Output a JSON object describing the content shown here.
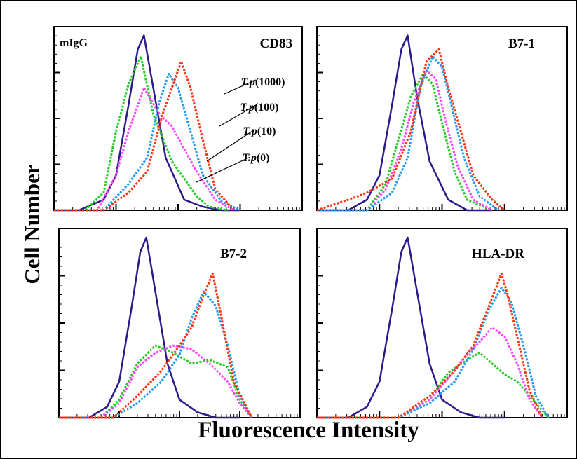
{
  "figure": {
    "y_axis_label": "Cell Number",
    "x_axis_label": "Fluorescence Intensity"
  },
  "colors": {
    "mIgG": "#2a1a8c",
    "T.p(0)": "#22cc22",
    "T.p(10)": "#ff44ff",
    "T.p(100)": "#2299ee",
    "T.p(1000)": "#ff3311"
  },
  "chart_data": [
    {
      "type": "line",
      "title": "CD83",
      "corner_label": "mIgG",
      "x_scale": "log",
      "xlim": [
        0,
        4
      ],
      "annotations": [
        "T.p(1000)",
        "T.p(100)",
        "T.p(10)",
        "T.p(0)"
      ],
      "series": [
        {
          "name": "mIgG",
          "style": "solid",
          "x": [
            0.0,
            0.4,
            0.8,
            1.0,
            1.2,
            1.35,
            1.45,
            1.6,
            1.8,
            2.1,
            2.4,
            2.7,
            3.0
          ],
          "y": [
            0,
            0,
            6,
            20,
            60,
            92,
            100,
            70,
            30,
            6,
            2,
            0,
            0
          ]
        },
        {
          "name": "T.p(0)",
          "style": "dotted",
          "x": [
            0.0,
            0.5,
            0.8,
            1.0,
            1.2,
            1.4,
            1.6,
            1.9,
            2.1,
            2.3,
            2.5,
            2.8
          ],
          "y": [
            0,
            0,
            10,
            45,
            72,
            88,
            55,
            28,
            18,
            8,
            2,
            0
          ]
        },
        {
          "name": "T.p(10)",
          "style": "dotted",
          "x": [
            0.0,
            0.7,
            1.0,
            1.2,
            1.45,
            1.7,
            1.9,
            2.1,
            2.3,
            2.6,
            2.9
          ],
          "y": [
            0,
            0,
            20,
            45,
            70,
            55,
            48,
            35,
            22,
            6,
            0
          ]
        },
        {
          "name": "T.p(100)",
          "style": "dotted",
          "x": [
            0.0,
            0.8,
            1.2,
            1.5,
            1.7,
            1.85,
            2.0,
            2.2,
            2.4,
            2.7,
            3.0
          ],
          "y": [
            0,
            0,
            15,
            30,
            62,
            78,
            70,
            45,
            20,
            5,
            0
          ]
        },
        {
          "name": "T.p(1000)",
          "style": "dotted",
          "x": [
            0.0,
            0.8,
            1.2,
            1.5,
            1.75,
            1.9,
            2.05,
            2.2,
            2.4,
            2.6,
            2.9
          ],
          "y": [
            0,
            0,
            10,
            22,
            55,
            70,
            85,
            70,
            40,
            12,
            0
          ]
        }
      ]
    },
    {
      "type": "line",
      "title": "B7-1",
      "x_scale": "log",
      "xlim": [
        0,
        4
      ],
      "series": [
        {
          "name": "mIgG",
          "style": "solid",
          "x": [
            0.0,
            0.5,
            0.8,
            1.0,
            1.2,
            1.35,
            1.45,
            1.6,
            1.8,
            2.1,
            2.4,
            2.8
          ],
          "y": [
            0,
            0,
            6,
            20,
            60,
            92,
            100,
            65,
            28,
            6,
            0,
            0
          ]
        },
        {
          "name": "T.p(0)",
          "style": "dotted",
          "x": [
            0.0,
            0.8,
            1.1,
            1.3,
            1.5,
            1.7,
            1.85,
            2.0,
            2.2,
            2.4,
            2.8
          ],
          "y": [
            0,
            0,
            15,
            40,
            65,
            78,
            72,
            50,
            22,
            6,
            0
          ]
        },
        {
          "name": "T.p(10)",
          "style": "dotted",
          "x": [
            0.0,
            0.8,
            1.1,
            1.35,
            1.55,
            1.75,
            1.9,
            2.05,
            2.25,
            2.5,
            2.8
          ],
          "y": [
            0,
            0,
            12,
            35,
            62,
            80,
            75,
            52,
            25,
            6,
            0
          ]
        },
        {
          "name": "T.p(100)",
          "style": "dotted",
          "x": [
            0.0,
            0.8,
            1.2,
            1.45,
            1.65,
            1.85,
            2.0,
            2.15,
            2.35,
            2.6,
            2.9
          ],
          "y": [
            0,
            0,
            10,
            30,
            70,
            88,
            82,
            60,
            30,
            8,
            0
          ]
        },
        {
          "name": "T.p(1000)",
          "style": "dotted",
          "x": [
            0.0,
            0.5,
            0.8,
            1.2,
            1.5,
            1.75,
            1.95,
            2.1,
            2.3,
            2.5,
            2.8,
            3.0
          ],
          "y": [
            0,
            6,
            10,
            18,
            45,
            85,
            92,
            70,
            45,
            20,
            6,
            0
          ]
        }
      ]
    },
    {
      "type": "line",
      "title": "B7-2",
      "x_scale": "log",
      "xlim": [
        0,
        4
      ],
      "series": [
        {
          "name": "mIgG",
          "style": "solid",
          "x": [
            0.0,
            0.5,
            0.8,
            1.0,
            1.2,
            1.35,
            1.45,
            1.6,
            1.8,
            2.0,
            2.3,
            2.6,
            3.0
          ],
          "y": [
            0,
            0,
            6,
            20,
            60,
            92,
            100,
            70,
            30,
            10,
            3,
            0,
            0
          ]
        },
        {
          "name": "T.p(0)",
          "style": "dotted",
          "x": [
            0.0,
            0.7,
            1.0,
            1.3,
            1.6,
            1.9,
            2.2,
            2.5,
            2.8,
            3.0,
            3.2
          ],
          "y": [
            0,
            0,
            10,
            30,
            40,
            36,
            30,
            32,
            28,
            10,
            0
          ]
        },
        {
          "name": "T.p(10)",
          "style": "dotted",
          "x": [
            0.0,
            0.7,
            1.0,
            1.3,
            1.6,
            1.9,
            2.2,
            2.5,
            2.8,
            3.0,
            3.2
          ],
          "y": [
            0,
            0,
            8,
            28,
            36,
            40,
            38,
            30,
            20,
            8,
            0
          ]
        },
        {
          "name": "T.p(100)",
          "style": "dotted",
          "x": [
            0.0,
            0.9,
            1.3,
            1.7,
            2.0,
            2.2,
            2.4,
            2.6,
            2.8,
            3.0,
            3.2
          ],
          "y": [
            0,
            0,
            8,
            20,
            35,
            55,
            70,
            62,
            40,
            12,
            0
          ]
        },
        {
          "name": "T.p(1000)",
          "style": "dotted",
          "x": [
            0.0,
            0.9,
            1.3,
            1.7,
            2.0,
            2.2,
            2.4,
            2.55,
            2.7,
            2.9,
            3.2
          ],
          "y": [
            0,
            0,
            12,
            26,
            40,
            50,
            68,
            80,
            55,
            20,
            0
          ]
        }
      ]
    },
    {
      "type": "line",
      "title": "HLA-DR",
      "x_scale": "log",
      "xlim": [
        0,
        4
      ],
      "series": [
        {
          "name": "mIgG",
          "style": "solid",
          "x": [
            0.0,
            0.5,
            0.8,
            1.0,
            1.2,
            1.35,
            1.45,
            1.6,
            1.8,
            2.0,
            2.3,
            2.6,
            3.0
          ],
          "y": [
            0,
            0,
            6,
            20,
            60,
            92,
            100,
            70,
            30,
            10,
            3,
            0,
            0
          ]
        },
        {
          "name": "T.p(0)",
          "style": "dotted",
          "x": [
            0.0,
            1.3,
            1.8,
            2.1,
            2.4,
            2.6,
            2.8,
            3.0,
            3.2,
            3.5,
            3.7
          ],
          "y": [
            0,
            0,
            10,
            25,
            32,
            36,
            30,
            24,
            20,
            8,
            0
          ]
        },
        {
          "name": "T.p(10)",
          "style": "dotted",
          "x": [
            0.0,
            1.3,
            1.8,
            2.1,
            2.4,
            2.6,
            2.8,
            3.0,
            3.2,
            3.4,
            3.6
          ],
          "y": [
            0,
            0,
            10,
            22,
            35,
            42,
            50,
            45,
            30,
            10,
            0
          ]
        },
        {
          "name": "T.p(100)",
          "style": "dotted",
          "x": [
            0.0,
            1.3,
            1.8,
            2.2,
            2.5,
            2.75,
            2.95,
            3.1,
            3.3,
            3.5,
            3.7
          ],
          "y": [
            0,
            0,
            8,
            20,
            38,
            60,
            72,
            65,
            40,
            12,
            0
          ]
        },
        {
          "name": "T.p(1000)",
          "style": "dotted",
          "x": [
            0.0,
            1.3,
            1.8,
            2.2,
            2.5,
            2.75,
            2.95,
            3.05,
            3.2,
            3.4,
            3.6
          ],
          "y": [
            0,
            0,
            12,
            26,
            40,
            62,
            80,
            68,
            45,
            15,
            0
          ]
        }
      ]
    }
  ]
}
